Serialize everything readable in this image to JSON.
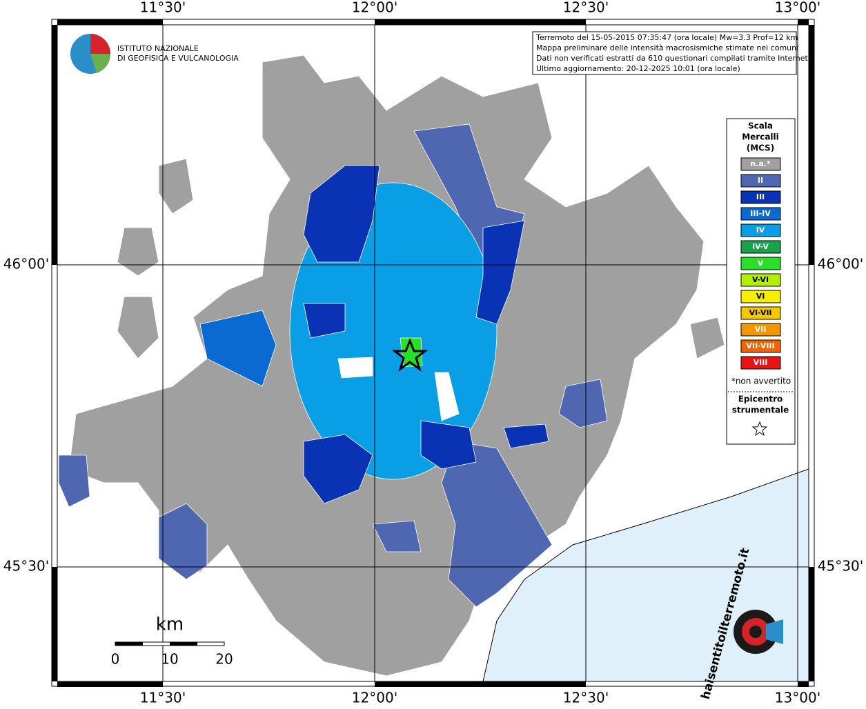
{
  "logo": {
    "lines": [
      "ISTITUTO NAZIONALE",
      "DI GEOFISICA E VULCANOLOGIA"
    ]
  },
  "map": {
    "lon_labels": [
      "11°30'",
      "12°00'",
      "12°30'",
      "13°00'"
    ],
    "lat_labels": [
      "46°00'",
      "45°30'"
    ],
    "info_box": [
      "Terremoto del 15-05-2015 07:35:47 (ora locale) Mw=3.3 Prof=12 km",
      "Mappa preliminare delle intensità macrosismiche stimate nei comuni",
      "Dati non verificati estratti da 610 questionari compilati tramite Internet.",
      "Ultimo aggiornamento: 20-12-2025 10:01 (ora locale)"
    ],
    "legend": {
      "title": [
        "Scala",
        "Mercalli",
        "(MCS)"
      ],
      "items": [
        {
          "label": "n.a.*",
          "color": "#a0a0a0"
        },
        {
          "label": "II",
          "color": "#4e67b0"
        },
        {
          "label": "III",
          "color": "#0a32b4"
        },
        {
          "label": "III-IV",
          "color": "#0a6ad2"
        },
        {
          "label": "IV",
          "color": "#0a9ee6"
        },
        {
          "label": "IV-V",
          "color": "#18a34a"
        },
        {
          "label": "V",
          "color": "#28e028"
        },
        {
          "label": "V-VI",
          "color": "#b4f000"
        },
        {
          "label": "VI",
          "color": "#f5f000"
        },
        {
          "label": "VI-VII",
          "color": "#f5c800"
        },
        {
          "label": "VII",
          "color": "#f59600"
        },
        {
          "label": "VII-VIII",
          "color": "#f06400"
        },
        {
          "label": "VIII",
          "color": "#e61414"
        }
      ],
      "note": "*non avvertito",
      "epicenter": [
        "Epicentro",
        "strumentale"
      ]
    },
    "scale": {
      "unit": "km",
      "ticks": [
        "0",
        "10",
        "20"
      ]
    },
    "watermark": "haisentitoilterremoto.it"
  }
}
